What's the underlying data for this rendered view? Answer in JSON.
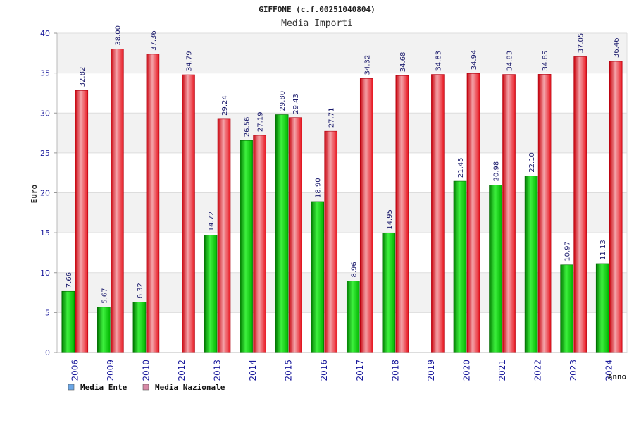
{
  "chart_data": {
    "type": "bar",
    "title": "GIFFONE (c.f.00251040804)",
    "subtitle": "Media Importi",
    "xlabel": "Anno",
    "ylabel": "Euro",
    "ylim": [
      0,
      40
    ],
    "yticks": [
      0,
      5,
      10,
      15,
      20,
      25,
      30,
      35,
      40
    ],
    "grid": true,
    "legend": "bottom-left",
    "categories": [
      "2006",
      "2009",
      "2010",
      "2012",
      "2013",
      "2014",
      "2015",
      "2016",
      "2017",
      "2018",
      "2019",
      "2020",
      "2021",
      "2022",
      "2023",
      "2024"
    ],
    "series": [
      {
        "name": "Media Ente",
        "color": "#00b400",
        "legend_color": "#6aa6e6",
        "values": [
          7.66,
          5.67,
          6.32,
          null,
          14.72,
          26.56,
          29.8,
          18.9,
          8.96,
          14.95,
          null,
          21.45,
          20.98,
          22.1,
          10.97,
          11.13
        ],
        "labels": [
          "7.66",
          "5.67",
          "6.32",
          "",
          "14.72",
          "26.56",
          "29.80",
          "18.90",
          "8.96",
          "14.95",
          "",
          "21.45",
          "20.98",
          "22.10",
          "10.97",
          "11.13"
        ]
      },
      {
        "name": "Media Nazionale",
        "color": "#e8141e",
        "legend_color": "#d98aa8",
        "values": [
          32.82,
          38.0,
          37.36,
          34.79,
          29.24,
          27.19,
          29.43,
          27.71,
          34.32,
          34.68,
          34.83,
          34.94,
          34.83,
          34.85,
          37.05,
          36.46
        ],
        "labels": [
          "32.82",
          "38.00",
          "37.36",
          "34.79",
          "29.24",
          "27.19",
          "29.43",
          "27.71",
          "34.32",
          "34.68",
          "34.83",
          "34.94",
          "34.83",
          "34.85",
          "37.05",
          "36.46"
        ]
      }
    ]
  }
}
